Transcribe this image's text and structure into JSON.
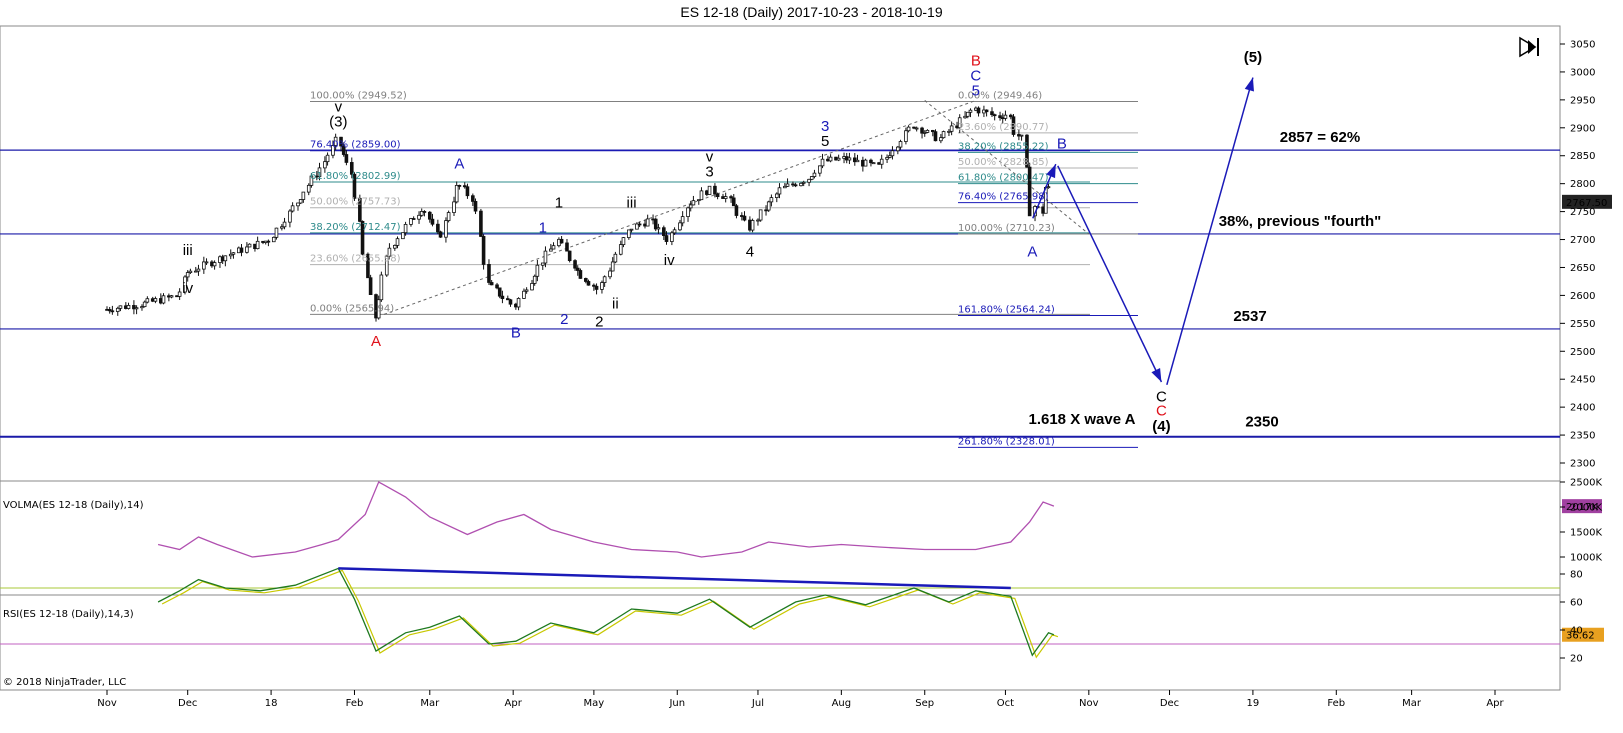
{
  "title": "ES 12-18 (Daily)  2017-10-23 - 2018-10-19",
  "copyright": "© 2018 NinjaTrader, LLC",
  "colors": {
    "candle": "#111111",
    "hline": "#1a1aa8",
    "wave_red": "#e0101a",
    "wave_blue": "#1a1ab8",
    "wave_black": "#000000",
    "fib_gray": "#808080",
    "fib_teal": "#2e8b8b",
    "fib_blue": "#1a1ab8",
    "volma": "#b050b0",
    "rsi": "#1f7a1f",
    "rsi_signal": "#c8c800",
    "trendline": "#1a1ab8"
  },
  "chart_data": [
    {
      "type": "candlestick",
      "title": "ES 12-18 (Daily)  2017-10-23 - 2018-10-19",
      "x_ticks": [
        "Nov",
        "Dec",
        "18",
        "Feb",
        "Mar",
        "Apr",
        "May",
        "Jun",
        "Jul",
        "Aug",
        "Sep",
        "Oct",
        "Nov",
        "Dec",
        "19",
        "Feb",
        "Mar",
        "Apr"
      ],
      "y_ticks": [
        3050,
        3000,
        2950,
        2900,
        2850,
        2800,
        2750,
        2700,
        2650,
        2600,
        2550,
        2500,
        2450,
        2400,
        2350,
        2300
      ],
      "last_price": "2767.50",
      "path": [
        [
          "2017-11-01",
          2575
        ],
        [
          "2017-11-15",
          2585
        ],
        [
          "2017-11-28",
          2600
        ],
        [
          "2017-12-01",
          2640
        ],
        [
          "2017-12-15",
          2670
        ],
        [
          "2018-01-01",
          2700
        ],
        [
          "2018-01-10",
          2760
        ],
        [
          "2018-01-20",
          2830
        ],
        [
          "2018-01-26",
          2880
        ],
        [
          "2018-02-01",
          2810
        ],
        [
          "2018-02-05",
          2660
        ],
        [
          "2018-02-09",
          2560
        ],
        [
          "2018-02-14",
          2680
        ],
        [
          "2018-02-20",
          2720
        ],
        [
          "2018-02-27",
          2760
        ],
        [
          "2018-03-05",
          2700
        ],
        [
          "2018-03-12",
          2800
        ],
        [
          "2018-03-18",
          2770
        ],
        [
          "2018-03-23",
          2620
        ],
        [
          "2018-04-02",
          2580
        ],
        [
          "2018-04-12",
          2660
        ],
        [
          "2018-04-18",
          2700
        ],
        [
          "2018-04-26",
          2640
        ],
        [
          "2018-05-03",
          2610
        ],
        [
          "2018-05-15",
          2720
        ],
        [
          "2018-05-22",
          2735
        ],
        [
          "2018-05-29",
          2700
        ],
        [
          "2018-06-05",
          2760
        ],
        [
          "2018-06-13",
          2790
        ],
        [
          "2018-06-20",
          2775
        ],
        [
          "2018-06-28",
          2720
        ],
        [
          "2018-07-10",
          2790
        ],
        [
          "2018-07-20",
          2810
        ],
        [
          "2018-07-26",
          2840
        ],
        [
          "2018-08-03",
          2845
        ],
        [
          "2018-08-15",
          2830
        ],
        [
          "2018-08-28",
          2905
        ],
        [
          "2018-09-07",
          2880
        ],
        [
          "2018-09-20",
          2935
        ],
        [
          "2018-09-28",
          2920
        ],
        [
          "2018-10-03",
          2925
        ],
        [
          "2018-10-05",
          2890
        ],
        [
          "2018-10-08",
          2880
        ],
        [
          "2018-10-10",
          2785
        ],
        [
          "2018-10-11",
          2730
        ],
        [
          "2018-10-12",
          2760
        ],
        [
          "2018-10-15",
          2750
        ],
        [
          "2018-10-17",
          2810
        ],
        [
          "2018-10-19",
          2767.5
        ]
      ],
      "horizontal_lines": [
        {
          "price": 2860,
          "label": "2857 = 62%"
        },
        {
          "price": 2710,
          "label": "38%, previous \"fourth\""
        },
        {
          "price": 2540,
          "label": "2537"
        },
        {
          "price": 2347,
          "label": "2350"
        }
      ],
      "fib_left": [
        {
          "price": 2947,
          "label": "100.00% (2949.52)",
          "color": "#808080"
        },
        {
          "price": 2859,
          "label": "76.40% (2859.00)",
          "color": "#1a1ab8"
        },
        {
          "price": 2803,
          "label": "61.80% (2802.99)",
          "color": "#2e8b8b"
        },
        {
          "price": 2757,
          "label": "50.00% (2757.73)",
          "color": "#b0b0b0"
        },
        {
          "price": 2712,
          "label": "38.20% (2712.47)",
          "color": "#2e8b8b"
        },
        {
          "price": 2655,
          "label": "23.60% (2655.98)",
          "color": "#b0b0b0"
        },
        {
          "price": 2566,
          "label": "0.00% (2565.94)",
          "color": "#808080"
        }
      ],
      "fib_right": [
        {
          "price": 2947,
          "label": "0.00% (2949.46)",
          "color": "#808080"
        },
        {
          "price": 2891,
          "label": "23.60% (2890.77)",
          "color": "#b0b0b0"
        },
        {
          "price": 2856,
          "label": "38.20% (2855.22)",
          "color": "#2e8b8b"
        },
        {
          "price": 2828,
          "label": "50.00% (2828.85)",
          "color": "#b0b0b0"
        },
        {
          "price": 2800,
          "label": "61.80% (2800.47)",
          "color": "#2e8b8b"
        },
        {
          "price": 2766,
          "label": "76.40% (2765.98)",
          "color": "#1a1ab8"
        },
        {
          "price": 2710,
          "label": "100.00% (2710.23)",
          "color": "#808080"
        },
        {
          "price": 2564,
          "label": "161.80% (2564.24)",
          "color": "#1a1ab8"
        },
        {
          "price": 2328,
          "label": "261.80% (2328.01)",
          "color": "#1a1ab8"
        }
      ],
      "wave_labels": [
        {
          "text": "(3)",
          "date": "2018-01-26",
          "price": 2890,
          "pos": "above",
          "color": "#000000"
        },
        {
          "text": "v",
          "date": "2018-01-26",
          "price": 2890,
          "pos": "above2",
          "color": "#000000"
        },
        {
          "text": "iii",
          "date": "2017-12-01",
          "price": 2660,
          "pos": "above",
          "color": "#000000"
        },
        {
          "text": "iv",
          "date": "2017-12-01",
          "price": 2640,
          "pos": "below",
          "color": "#000000"
        },
        {
          "text": "A",
          "date": "2018-02-09",
          "price": 2545,
          "pos": "below",
          "color": "#e0101a"
        },
        {
          "text": "A",
          "date": "2018-03-12",
          "price": 2815,
          "pos": "above",
          "color": "#1a1ab8"
        },
        {
          "text": "B",
          "date": "2018-04-02",
          "price": 2560,
          "pos": "below",
          "color": "#1a1ab8"
        },
        {
          "text": "1",
          "date": "2018-04-12",
          "price": 2700,
          "pos": "above",
          "color": "#1a1ab8"
        },
        {
          "text": "2",
          "date": "2018-04-20",
          "price": 2585,
          "pos": "below",
          "color": "#1a1ab8"
        },
        {
          "text": "1",
          "date": "2018-04-18",
          "price": 2745,
          "pos": "above",
          "color": "#000000"
        },
        {
          "text": "2",
          "date": "2018-05-03",
          "price": 2580,
          "pos": "below",
          "color": "#000000"
        },
        {
          "text": "iii",
          "date": "2018-05-15",
          "price": 2745,
          "pos": "above",
          "color": "#000000"
        },
        {
          "text": "ii",
          "date": "2018-05-09",
          "price": 2612,
          "pos": "below",
          "color": "#000000"
        },
        {
          "text": "3",
          "date": "2018-06-13",
          "price": 2800,
          "pos": "above",
          "color": "#000000"
        },
        {
          "text": "v",
          "date": "2018-06-13",
          "price": 2800,
          "pos": "above2",
          "color": "#000000"
        },
        {
          "text": "iv",
          "date": "2018-05-29",
          "price": 2690,
          "pos": "below",
          "color": "#000000"
        },
        {
          "text": "4",
          "date": "2018-06-28",
          "price": 2705,
          "pos": "below",
          "color": "#000000"
        },
        {
          "text": "3",
          "date": "2018-07-26",
          "price": 2855,
          "pos": "above2",
          "color": "#1a1ab8"
        },
        {
          "text": "5",
          "date": "2018-07-26",
          "price": 2855,
          "pos": "above",
          "color": "#000000"
        },
        {
          "text": "B",
          "date": "2018-09-20",
          "price": 2945,
          "pos": "above3",
          "color": "#e0101a"
        },
        {
          "text": "C",
          "date": "2018-09-20",
          "price": 2945,
          "pos": "above2",
          "color": "#1a1ab8"
        },
        {
          "text": "5",
          "date": "2018-09-20",
          "price": 2945,
          "pos": "above",
          "color": "#1a1ab8"
        },
        {
          "text": "A",
          "date": "2018-10-11",
          "price": 2705,
          "pos": "below",
          "color": "#1a1ab8"
        },
        {
          "text": "B",
          "date": "2018-10-22",
          "price": 2850,
          "pos": "above",
          "color": "#1a1ab8"
        }
      ],
      "projection": {
        "c_label": "C",
        "c_label2": "C",
        "wave4_label": "(4)",
        "wave5_label": "(5)",
        "note": "1.618 X wave A"
      }
    },
    {
      "type": "line",
      "title": "VOLMA(ES 12-18 (Daily),14)",
      "y_ticks": [
        "2500K",
        "2000K",
        "1500K",
        "1000K"
      ],
      "last_value": "2017K",
      "path": [
        [
          "2017-11-20",
          1250
        ],
        [
          "2017-11-28",
          1150
        ],
        [
          "2017-12-05",
          1400
        ],
        [
          "2017-12-12",
          1250
        ],
        [
          "2017-12-25",
          1000
        ],
        [
          "2018-01-10",
          1100
        ],
        [
          "2018-01-20",
          1250
        ],
        [
          "2018-01-26",
          1350
        ],
        [
          "2018-02-05",
          1850
        ],
        [
          "2018-02-10",
          2500
        ],
        [
          "2018-02-20",
          2200
        ],
        [
          "2018-03-01",
          1800
        ],
        [
          "2018-03-15",
          1450
        ],
        [
          "2018-03-26",
          1700
        ],
        [
          "2018-04-05",
          1850
        ],
        [
          "2018-04-15",
          1550
        ],
        [
          "2018-05-01",
          1300
        ],
        [
          "2018-05-15",
          1150
        ],
        [
          "2018-06-01",
          1100
        ],
        [
          "2018-06-10",
          1000
        ],
        [
          "2018-06-25",
          1100
        ],
        [
          "2018-07-05",
          1300
        ],
        [
          "2018-07-20",
          1200
        ],
        [
          "2018-08-01",
          1250
        ],
        [
          "2018-08-15",
          1200
        ],
        [
          "2018-09-01",
          1150
        ],
        [
          "2018-09-20",
          1150
        ],
        [
          "2018-10-03",
          1300
        ],
        [
          "2018-10-10",
          1700
        ],
        [
          "2018-10-15",
          2100
        ],
        [
          "2018-10-19",
          2017
        ]
      ]
    },
    {
      "type": "line",
      "title": "RSI(ES 12-18 (Daily),14,3)",
      "y_ticks": [
        "80",
        "60",
        "40",
        "20"
      ],
      "levels": [
        70,
        30
      ],
      "last_value": "36.62",
      "path": [
        [
          "2017-11-20",
          60
        ],
        [
          "2017-11-28",
          68
        ],
        [
          "2017-12-05",
          76
        ],
        [
          "2017-12-15",
          70
        ],
        [
          "2017-12-28",
          68
        ],
        [
          "2018-01-10",
          72
        ],
        [
          "2018-01-26",
          84
        ],
        [
          "2018-02-01",
          62
        ],
        [
          "2018-02-09",
          25
        ],
        [
          "2018-02-20",
          38
        ],
        [
          "2018-03-01",
          42
        ],
        [
          "2018-03-12",
          50
        ],
        [
          "2018-03-23",
          30
        ],
        [
          "2018-04-02",
          32
        ],
        [
          "2018-04-15",
          45
        ],
        [
          "2018-05-01",
          38
        ],
        [
          "2018-05-15",
          55
        ],
        [
          "2018-06-01",
          52
        ],
        [
          "2018-06-13",
          62
        ],
        [
          "2018-06-28",
          42
        ],
        [
          "2018-07-15",
          60
        ],
        [
          "2018-07-26",
          65
        ],
        [
          "2018-08-10",
          58
        ],
        [
          "2018-08-28",
          70
        ],
        [
          "2018-09-10",
          60
        ],
        [
          "2018-09-20",
          68
        ],
        [
          "2018-10-03",
          64
        ],
        [
          "2018-10-11",
          22
        ],
        [
          "2018-10-17",
          38
        ],
        [
          "2018-10-19",
          36.62
        ]
      ],
      "trendline": [
        [
          "2018-01-26",
          84
        ],
        [
          "2018-10-03",
          70
        ]
      ]
    }
  ]
}
